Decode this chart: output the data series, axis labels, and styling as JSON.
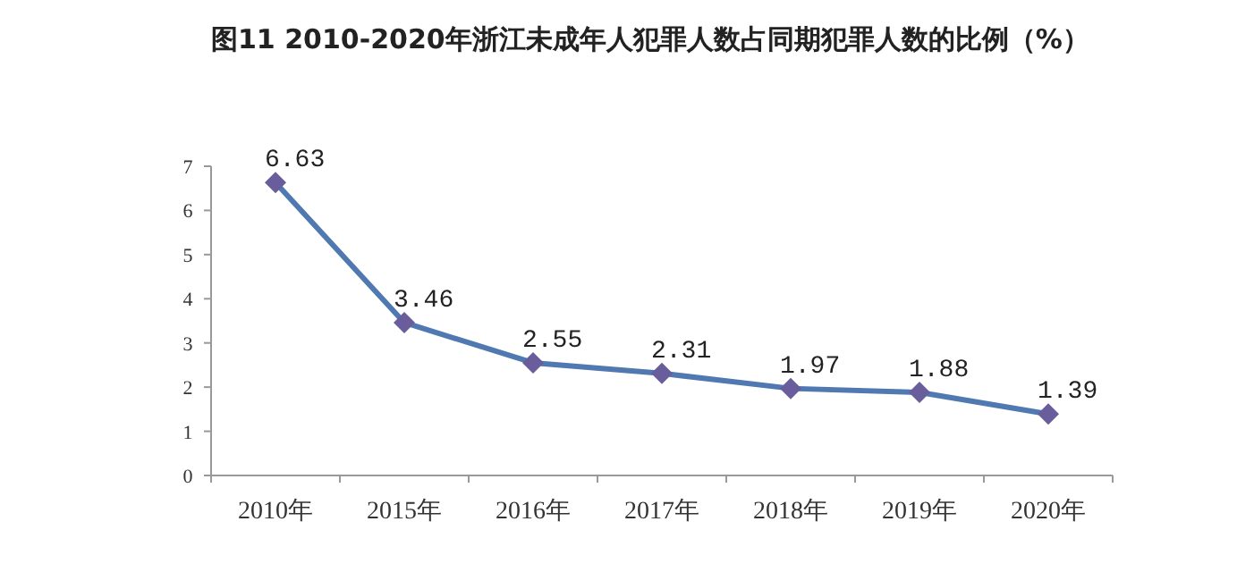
{
  "chart_data": {
    "type": "line",
    "title": "图11 2010-2020年浙江未成年人犯罪人数占同期犯罪人数的比例（%）",
    "categories": [
      "2010年",
      "2015年",
      "2016年",
      "2017年",
      "2018年",
      "2019年",
      "2020年"
    ],
    "series": [
      {
        "color": "#4f79b0",
        "values": [
          6.63,
          3.46,
          2.55,
          2.31,
          1.97,
          1.88,
          1.39
        ]
      }
    ],
    "ylim": [
      0,
      7
    ],
    "yticks": [
      0,
      1,
      2,
      3,
      4,
      5,
      6,
      7
    ],
    "grid": false,
    "marker": "diamond",
    "line_style": "solid",
    "data_labels": true
  }
}
